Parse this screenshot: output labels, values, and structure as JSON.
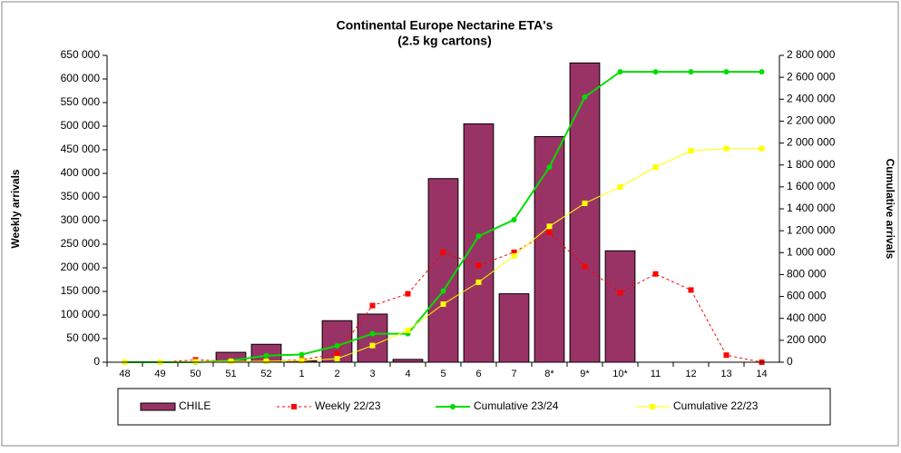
{
  "chart_data": {
    "type": "combo",
    "title": "Continental Europe Nectarine ETA's",
    "subtitle": "(2.5 kg cartons)",
    "ylabel": "Weekly arrivals",
    "y2label": "Cumulative arrivals",
    "categories": [
      "48",
      "49",
      "50",
      "51",
      "52",
      "1",
      "2",
      "3",
      "4",
      "5",
      "6",
      "7",
      "8*",
      "9*",
      "10*",
      "11",
      "12",
      "13",
      "14"
    ],
    "ylim": [
      0,
      650000
    ],
    "yticks": [
      0,
      {
        "value": 50000,
        "label": "50 000"
      },
      {
        "value": 100000,
        "label": "100 000"
      },
      {
        "value": 150000,
        "label": "150 000"
      },
      {
        "value": 200000,
        "label": "200 000"
      },
      {
        "value": 250000,
        "label": "250 000"
      },
      {
        "value": 300000,
        "label": "300 000"
      },
      {
        "value": 350000,
        "label": "350 000"
      },
      {
        "value": 400000,
        "label": "400 000"
      },
      {
        "value": 450000,
        "label": "450 000"
      },
      {
        "value": 500000,
        "label": "500 000"
      },
      {
        "value": 550000,
        "label": "550 000"
      },
      {
        "value": 600000,
        "label": "600 000"
      },
      {
        "value": 650000,
        "label": "650 000"
      }
    ],
    "y2lim": [
      0,
      2800000
    ],
    "y2ticks": [
      0,
      {
        "value": 200000,
        "label": "200 000"
      },
      {
        "value": 400000,
        "label": "400 000"
      },
      {
        "value": 600000,
        "label": "600 000"
      },
      {
        "value": 800000,
        "label": "800 000"
      },
      {
        "value": 1000000,
        "label": "1 000 000"
      },
      {
        "value": 1200000,
        "label": "1 200 000"
      },
      {
        "value": 1400000,
        "label": "1 400 000"
      },
      {
        "value": 1600000,
        "label": "1 600 000"
      },
      {
        "value": 1800000,
        "label": "1 800 000"
      },
      {
        "value": 2000000,
        "label": "2 000 000"
      },
      {
        "value": 2200000,
        "label": "2 200 000"
      },
      {
        "value": 2400000,
        "label": "2 400 000"
      },
      {
        "value": 2600000,
        "label": "2 600 000"
      },
      {
        "value": 2800000,
        "label": "2 800 000"
      }
    ],
    "legend": "bottom",
    "series": [
      {
        "name": "CHILE",
        "type": "bar",
        "color": "#993366",
        "values": [
          0,
          0,
          0,
          21000,
          38000,
          3000,
          88000,
          102000,
          6000,
          389000,
          505000,
          145000,
          478000,
          634000,
          236000,
          0,
          0,
          0,
          0
        ]
      },
      {
        "name": "Weekly 22/23",
        "type": "line",
        "color": "#ff0000",
        "dash": true,
        "marker": "square",
        "values": [
          0,
          0,
          5000,
          2000,
          2000,
          5000,
          18000,
          120000,
          145000,
          233000,
          205000,
          233000,
          275000,
          203000,
          147000,
          187000,
          153000,
          15000,
          0
        ]
      },
      {
        "name": "Cumulative 23/24",
        "type": "line",
        "axis": "y2",
        "color": "#00dd00",
        "marker": "circle",
        "values": [
          0,
          0,
          0,
          15000,
          60000,
          70000,
          150000,
          260000,
          260000,
          650000,
          1150000,
          1300000,
          1780000,
          2420000,
          2650000,
          2650000,
          2650000,
          2650000,
          2650000
        ]
      },
      {
        "name": "Cumulative 22/23",
        "type": "line",
        "axis": "y2",
        "color": "#ffff00",
        "marker": "square",
        "values": [
          0,
          0,
          5000,
          7000,
          9000,
          14000,
          32000,
          152000,
          290000,
          530000,
          730000,
          970000,
          1240000,
          1450000,
          1600000,
          1780000,
          1930000,
          1950000,
          1950000
        ]
      }
    ]
  }
}
